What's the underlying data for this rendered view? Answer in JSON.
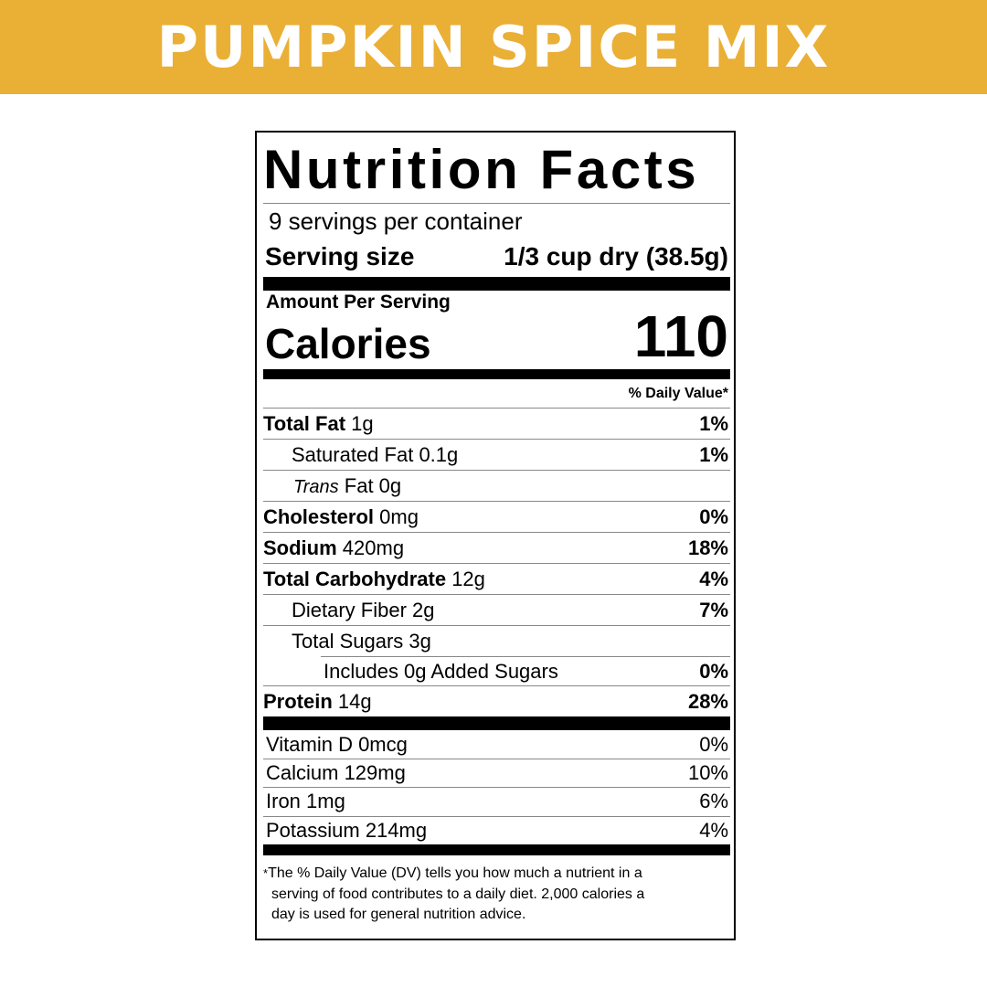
{
  "banner": {
    "title": "PUMPKIN SPICE MIX",
    "color": "#EAAF35"
  },
  "label": {
    "title": "Nutrition Facts",
    "servings": "9 servings per container",
    "serving_size_label": "Serving size",
    "serving_size_value": "1/3 cup dry (38.5g)",
    "amount_per_serving": "Amount Per Serving",
    "calories_label": "Calories",
    "calories_value": "110",
    "daily_value_header": "% Daily Value*",
    "nutrients": [
      {
        "name": "Total Fat",
        "amount": "1g",
        "dv": "1%"
      },
      {
        "name": "Saturated Fat",
        "amount": "0.1g",
        "dv": "1%"
      },
      {
        "name": "Trans",
        "amount": "Fat 0g",
        "dv": ""
      },
      {
        "name": "Cholesterol",
        "amount": "0mg",
        "dv": "0%"
      },
      {
        "name": "Sodium",
        "amount": "420mg",
        "dv": "18%"
      },
      {
        "name": "Total Carbohydrate",
        "amount": "12g",
        "dv": "4%"
      },
      {
        "name": "Dietary Fiber",
        "amount": "2g",
        "dv": "7%"
      },
      {
        "name": "Total Sugars",
        "amount": "3g",
        "dv": ""
      },
      {
        "name": "Includes 0g Added Sugars",
        "amount": "",
        "dv": "0%"
      },
      {
        "name": "Protein",
        "amount": "14g",
        "dv": "28%"
      }
    ],
    "vitamins": [
      {
        "name": "Vitamin D 0mcg",
        "dv": "0%"
      },
      {
        "name": "Calcium 129mg",
        "dv": "10%"
      },
      {
        "name": "Iron 1mg",
        "dv": "6%"
      },
      {
        "name": "Potassium 214mg",
        "dv": "4%"
      }
    ],
    "footnote_star": "*",
    "footnote_lines": [
      "The % Daily Value (DV) tells you how much a nutrient in a",
      "serving of food contributes to a daily diet. 2,000 calories a",
      "day is used for general nutrition advice."
    ]
  }
}
